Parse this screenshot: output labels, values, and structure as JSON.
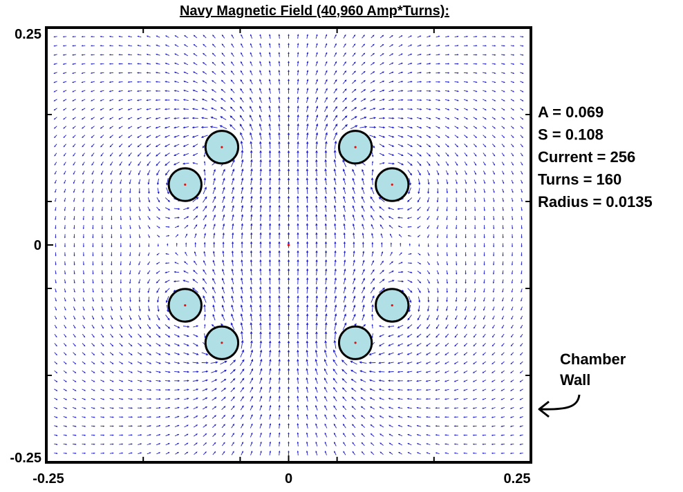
{
  "chart_data": {
    "type": "vector_field",
    "title": "Navy Magnetic Field (40,960 Amp*Turns):",
    "xlabel": "",
    "ylabel": "",
    "xlim": [
      -0.25,
      0.25
    ],
    "ylim": [
      -0.25,
      0.25
    ],
    "x_ticks": [
      {
        "value": -0.25,
        "label": "-0.25"
      },
      {
        "value": 0,
        "label": "0"
      },
      {
        "value": 0.25,
        "label": "0.25"
      }
    ],
    "y_ticks": [
      {
        "value": 0.25,
        "label": "0.25"
      },
      {
        "value": 0,
        "label": "0"
      },
      {
        "value": -0.25,
        "label": "-0.25"
      }
    ],
    "grid": false,
    "parameters": [
      "A = 0.069",
      "S = 0.108",
      "Current = 256",
      "Turns = 160",
      "Radius = 0.0135"
    ],
    "annotation": {
      "text": [
        "Chamber",
        "Wall"
      ],
      "points_to": "right-axis-border"
    },
    "coils": [
      {
        "x": -0.0689,
        "y": 0.1125
      },
      {
        "x": 0.0689,
        "y": 0.1125
      },
      {
        "x": -0.1068,
        "y": 0.0694
      },
      {
        "x": 0.1068,
        "y": 0.0694
      },
      {
        "x": -0.1068,
        "y": -0.0694
      },
      {
        "x": 0.1068,
        "y": -0.0694
      },
      {
        "x": -0.0689,
        "y": -0.1125
      },
      {
        "x": 0.0689,
        "y": -0.1125
      }
    ],
    "coil_radius": 0.0135,
    "center_marker": {
      "x": 0,
      "y": 0
    },
    "colors": {
      "arrow": "#1a1acc",
      "coil_fill": "#b0e0e6",
      "coil_stroke": "#000000",
      "coil_center": "#e01010"
    }
  }
}
